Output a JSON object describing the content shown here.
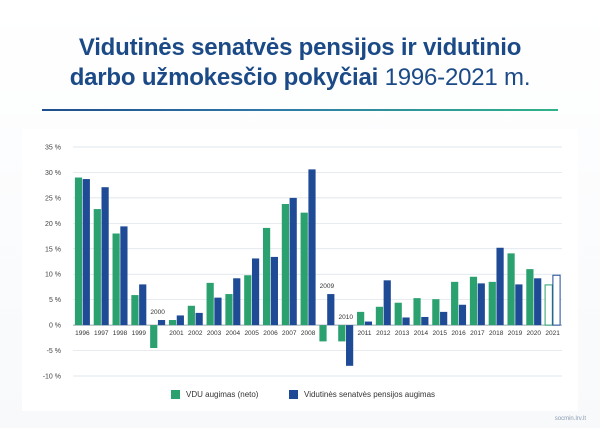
{
  "title": {
    "line1": "Vidutinės senatvės pensijos ir vidutinio",
    "line2_bold": "darbo užmokesčio pokyčiai",
    "line2_light": "1996-2021 m."
  },
  "footer": "socmin.lrv.lt",
  "colors": {
    "title": "#1b4a86",
    "vdu": "#2aa16e",
    "pension": "#1f4a96",
    "axis": "#9aa7b3",
    "grid": "#d9dfe6"
  },
  "chart_data": {
    "type": "bar",
    "title": "",
    "xlabel": "",
    "ylabel": "",
    "ylim": [
      -10,
      35
    ],
    "y_ticks": [
      "35 %",
      "30 %",
      "25 %",
      "20 %",
      "15 %",
      "10 %",
      "5 %",
      "0 %",
      "-5 %",
      "-10 %"
    ],
    "y_tick_values": [
      35,
      30,
      25,
      20,
      15,
      10,
      5,
      0,
      -5,
      -10
    ],
    "grid": true,
    "legend_position": "bottom",
    "categories": [
      "1996",
      "1997",
      "1998",
      "1999",
      "2000",
      "2001",
      "2002",
      "2003",
      "2004",
      "2005",
      "2006",
      "2007",
      "2008",
      "2009",
      "2010",
      "2011",
      "2012",
      "2013",
      "2014",
      "2015",
      "2016",
      "2017",
      "2018",
      "2019",
      "2020",
      "2021"
    ],
    "category_label_above": [
      "2000",
      "2009",
      "2010"
    ],
    "series": [
      {
        "name": "VDU augimas (neto)",
        "color": "#2aa16e",
        "values": [
          29.0,
          22.8,
          18.0,
          5.9,
          -4.5,
          1.0,
          3.8,
          8.3,
          6.1,
          9.8,
          19.1,
          23.8,
          22.1,
          -3.2,
          -3.2,
          2.6,
          3.6,
          4.4,
          5.3,
          5.1,
          8.5,
          9.5,
          8.5,
          14.1,
          11.0,
          7.9
        ],
        "projected": [
          false,
          false,
          false,
          false,
          false,
          false,
          false,
          false,
          false,
          false,
          false,
          false,
          false,
          false,
          false,
          false,
          false,
          false,
          false,
          false,
          false,
          false,
          false,
          false,
          false,
          true
        ]
      },
      {
        "name": "Vidutinės senatvės pensijos augimas",
        "color": "#1f4a96",
        "values": [
          28.7,
          27.1,
          19.4,
          8.0,
          1.0,
          1.9,
          2.4,
          5.4,
          9.2,
          13.1,
          13.4,
          25.0,
          30.6,
          6.1,
          -8.0,
          0.7,
          8.8,
          1.5,
          1.6,
          2.6,
          4.0,
          8.2,
          15.2,
          8.0,
          9.2,
          9.8
        ],
        "projected": [
          false,
          false,
          false,
          false,
          false,
          false,
          false,
          false,
          false,
          false,
          false,
          false,
          false,
          false,
          false,
          false,
          false,
          false,
          false,
          false,
          false,
          false,
          false,
          false,
          false,
          true
        ]
      }
    ]
  }
}
